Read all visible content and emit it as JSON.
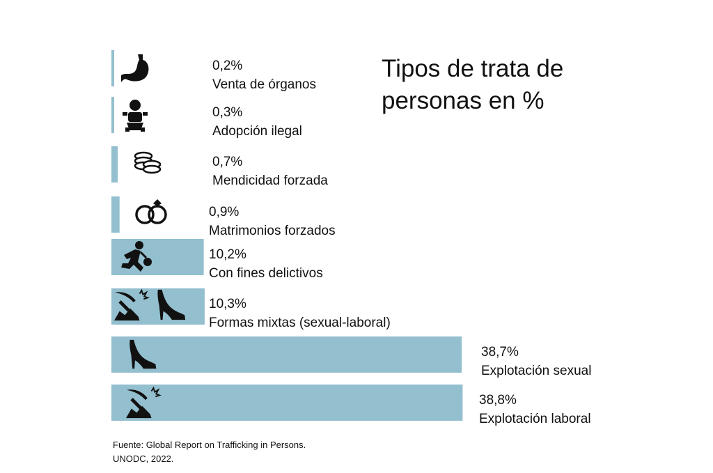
{
  "title": "Tipos de trata de personas en %",
  "source": {
    "line1": "Fuente: Global Report on Trafficking in Persons.",
    "line2": "UNODC, 2022."
  },
  "colors": {
    "bar": "#93bfcf",
    "icon": "#111111"
  },
  "chart_data": {
    "type": "bar",
    "orientation": "horizontal",
    "title": "Tipos de trata de personas en %",
    "unit": "%",
    "xlim": [
      0,
      40
    ],
    "grid": false,
    "categories": [
      "Venta de órganos",
      "Adopción ilegal",
      "Mendicidad forzada",
      "Matrimonios forzados",
      "Con fines delictivos",
      "Formas mixtas (sexual-laboral)",
      "Explotación sexual",
      "Explotación laboral"
    ],
    "values": [
      0.2,
      0.3,
      0.7,
      0.9,
      10.2,
      10.3,
      38.7,
      38.8
    ],
    "value_labels": [
      "0,2%",
      "0,3%",
      "0,7%",
      "0,9%",
      "10,2%",
      "10,3%",
      "38,7%",
      "38,8%"
    ],
    "icons": [
      "stomach-icon",
      "baby-icon",
      "coins-icon",
      "rings-icon",
      "thief-icon",
      "pickaxe-and-heel-icon",
      "high-heel-icon",
      "pickaxe-icon"
    ]
  }
}
